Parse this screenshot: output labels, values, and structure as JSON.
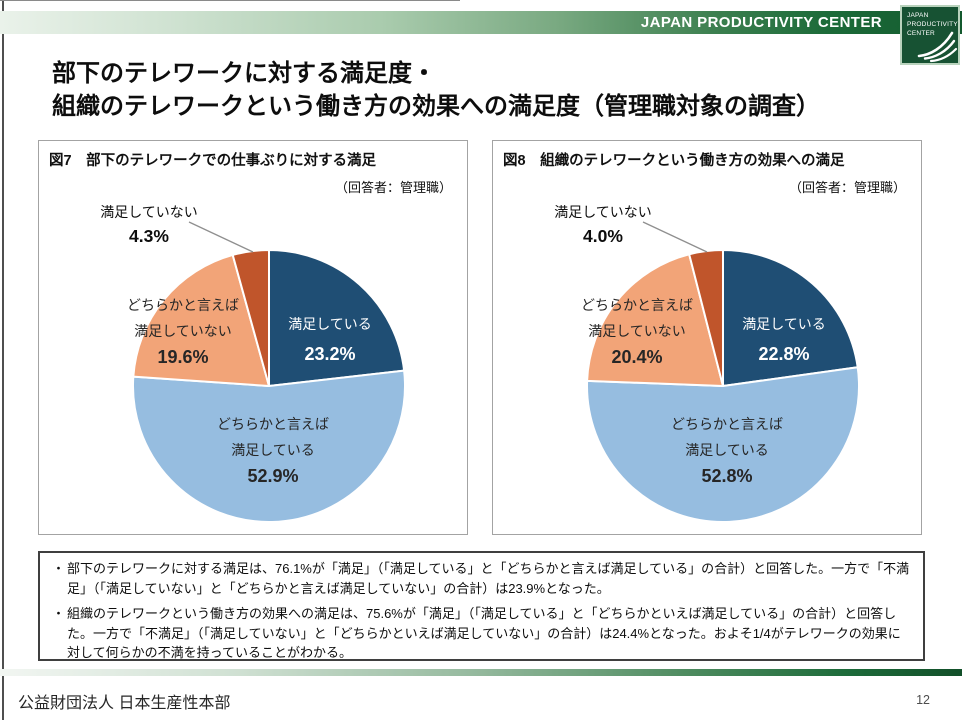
{
  "header": {
    "brand": "JAPAN PRODUCTIVITY CENTER",
    "logo": {
      "line1": "JAPAN",
      "line2": "PRODUCTIVITY",
      "line3": "CENTER"
    }
  },
  "title": {
    "line1": "部下のテレワークに対する満足度・",
    "line2": "組織のテレワークという働き方の効果への満足度（管理職対象の調査）"
  },
  "chart_data": [
    {
      "type": "pie",
      "title": "図7　部下のテレワークでの仕事ぶりに対する満足",
      "respondent_note": "（回答者：管理職）",
      "start_angle_deg": 0,
      "direction": "clockwise",
      "slices": [
        {
          "label": "満足している",
          "value": 23.2,
          "color": "#1F4E74",
          "text_color": "#FFFFFF"
        },
        {
          "label": "どちらかと言えば満足している",
          "label_lines": [
            "どちらかと言えば",
            "満足している"
          ],
          "value": 52.9,
          "color": "#96BDE0",
          "text_color": "#262626"
        },
        {
          "label": "どちらかと言えば満足していない",
          "label_lines": [
            "どちらかと言えば",
            "満足していない"
          ],
          "value": 19.6,
          "color": "#F2A478",
          "text_color": "#262626"
        },
        {
          "label": "満足していない",
          "value": 4.3,
          "color": "#C0552B",
          "label_position": "outside"
        }
      ]
    },
    {
      "type": "pie",
      "title": "図8　組織のテレワークという働き方の効果への満足",
      "respondent_note": "（回答者：管理職）",
      "start_angle_deg": 0,
      "direction": "clockwise",
      "slices": [
        {
          "label": "満足している",
          "value": 22.8,
          "color": "#1F4E74",
          "text_color": "#FFFFFF"
        },
        {
          "label": "どちらかと言えば満足している",
          "label_lines": [
            "どちらかと言えば",
            "満足している"
          ],
          "value": 52.8,
          "color": "#96BDE0",
          "text_color": "#262626"
        },
        {
          "label": "どちらかと言えば満足していない",
          "label_lines": [
            "どちらかと言えば",
            "満足していない"
          ],
          "value": 20.4,
          "color": "#F2A478",
          "text_color": "#262626"
        },
        {
          "label": "満足していない",
          "value": 4.0,
          "color": "#C0552B",
          "label_position": "outside"
        }
      ]
    }
  ],
  "notes": {
    "bullet_char": "・",
    "bullets": [
      "部下のテレワークに対する満足は、76.1%が「満足」（「満足している」と「どちらかと言えば満足している」の合計）と回答した。一方で「不満足」（「満足していない」と「どちらかと言えば満足していない」の合計）は23.9%となった。",
      "組織のテレワークという働き方の効果への満足は、75.6%が「満足」（「満足している」と「どちらかといえば満足している」の合計）と回答した。一方で「不満足」（「満足していない」と「どちらかといえば満足していない」の合計）は24.4%となった。およそ1/4がテレワークの効果に対して何らかの不満を持っていることがわかる。"
    ]
  },
  "footer": {
    "organization": "公益財団法人 日本生産性本部",
    "page_number": "12"
  },
  "colors": {
    "satisfied_dark_blue": "#1F4E74",
    "somewhat_satisfied_light_blue": "#96BDE0",
    "somewhat_unsatisfied_salmon": "#F2A478",
    "unsatisfied_rust": "#C0552B",
    "header_green_dark": "#13592e"
  }
}
